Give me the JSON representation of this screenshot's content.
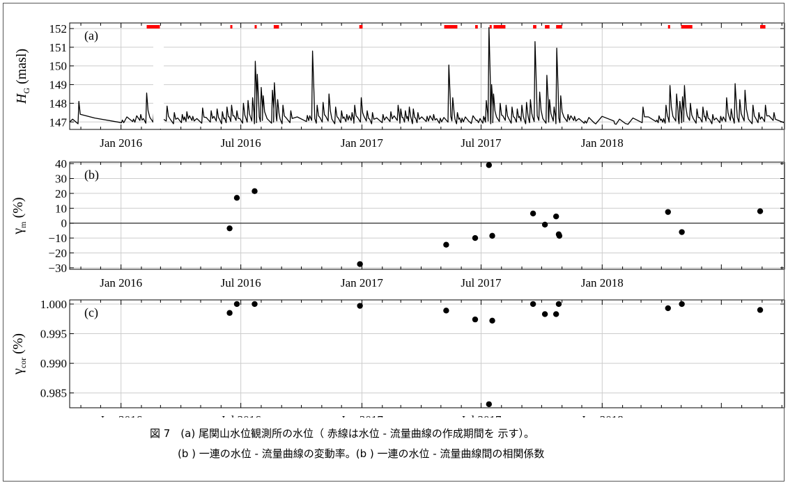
{
  "chart_data": [
    {
      "type": "line",
      "panel_label": "(a)",
      "ylabel": "H_G (masl)",
      "ylabel_main": "H",
      "ylabel_sub": "G",
      "ylabel_unit": "(masl)",
      "x_range": [
        "2015-10-15",
        "2018-10-05"
      ],
      "ylim": [
        146.6,
        152.3
      ],
      "yticks": [
        147,
        148,
        149,
        150,
        151,
        152
      ],
      "xtick_labels": [
        "Jan 2016",
        "Jul 2016",
        "Jan 2017",
        "Jul 2017",
        "Jan 2018"
      ],
      "xtick_dates": [
        "2016-01-01",
        "2016-07-01",
        "2017-01-01",
        "2017-07-01",
        "2018-01-01"
      ],
      "grid": true,
      "baseline": 146.85,
      "peaks": [
        [
          "2015-10-29",
          148.1
        ],
        [
          "2016-01-03",
          147.1
        ],
        [
          "2016-01-20",
          147.15
        ],
        [
          "2016-01-31",
          147.4
        ],
        [
          "2016-02-09",
          148.55
        ],
        [
          "2016-02-20",
          147.6
        ],
        [
          "2016-03-11",
          147.85
        ],
        [
          "2016-03-22",
          147.5
        ],
        [
          "2016-04-03",
          147.4
        ],
        [
          "2016-04-10",
          147.55
        ],
        [
          "2016-04-19",
          147.3
        ],
        [
          "2016-05-04",
          147.75
        ],
        [
          "2016-05-17",
          147.6
        ],
        [
          "2016-05-26",
          147.7
        ],
        [
          "2016-06-03",
          147.55
        ],
        [
          "2016-06-10",
          147.8
        ],
        [
          "2016-06-17",
          147.9
        ],
        [
          "2016-06-25",
          147.6
        ],
        [
          "2016-07-05",
          148.0
        ],
        [
          "2016-07-12",
          148.15
        ],
        [
          "2016-07-19",
          148.3
        ],
        [
          "2016-07-23",
          150.25
        ],
        [
          "2016-07-26",
          149.55
        ],
        [
          "2016-08-01",
          148.85
        ],
        [
          "2016-08-04",
          148.4
        ],
        [
          "2016-08-18",
          148.7
        ],
        [
          "2016-08-21",
          149.1
        ],
        [
          "2016-08-26",
          148.2
        ],
        [
          "2016-09-03",
          147.9
        ],
        [
          "2016-09-15",
          147.6
        ],
        [
          "2016-10-10",
          147.35
        ],
        [
          "2016-10-18",
          150.8
        ],
        [
          "2016-10-25",
          147.9
        ],
        [
          "2016-11-03",
          148.05
        ],
        [
          "2016-11-12",
          148.5
        ],
        [
          "2016-11-22",
          147.8
        ],
        [
          "2016-12-01",
          147.6
        ],
        [
          "2016-12-09",
          147.4
        ],
        [
          "2016-12-17",
          147.5
        ],
        [
          "2016-12-21",
          147.9
        ],
        [
          "2016-12-31",
          148.3
        ],
        [
          "2017-01-09",
          147.6
        ],
        [
          "2017-01-17",
          147.5
        ],
        [
          "2017-02-02",
          147.4
        ],
        [
          "2017-02-14",
          147.55
        ],
        [
          "2017-02-25",
          147.9
        ],
        [
          "2017-03-01",
          147.7
        ],
        [
          "2017-03-08",
          147.6
        ],
        [
          "2017-03-14",
          147.8
        ],
        [
          "2017-03-20",
          147.7
        ],
        [
          "2017-03-27",
          147.5
        ],
        [
          "2017-04-10",
          147.3
        ],
        [
          "2017-04-20",
          147.4
        ],
        [
          "2017-04-30",
          147.2
        ],
        [
          "2017-05-13",
          150.05
        ],
        [
          "2017-05-19",
          148.3
        ],
        [
          "2017-05-26",
          147.5
        ],
        [
          "2017-06-02",
          147.2
        ],
        [
          "2017-06-14",
          147.0
        ],
        [
          "2017-06-25",
          147.1
        ],
        [
          "2017-07-05",
          147.3
        ],
        [
          "2017-07-09",
          148.15
        ],
        [
          "2017-07-13",
          152.05
        ],
        [
          "2017-07-17",
          149.0
        ],
        [
          "2017-07-20",
          148.5
        ],
        [
          "2017-07-30",
          148.0
        ],
        [
          "2017-08-08",
          147.9
        ],
        [
          "2017-08-17",
          147.8
        ],
        [
          "2017-08-25",
          147.7
        ],
        [
          "2017-09-01",
          147.9
        ],
        [
          "2017-09-08",
          148.05
        ],
        [
          "2017-09-14",
          148.2
        ],
        [
          "2017-09-21",
          151.3
        ],
        [
          "2017-09-28",
          148.6
        ],
        [
          "2017-10-09",
          149.5
        ],
        [
          "2017-10-13",
          148.2
        ],
        [
          "2017-10-20",
          147.8
        ],
        [
          "2017-10-24",
          150.95
        ],
        [
          "2017-10-30",
          148.4
        ],
        [
          "2017-11-10",
          147.4
        ],
        [
          "2017-11-20",
          147.3
        ],
        [
          "2017-12-06",
          147.05
        ],
        [
          "2017-12-20",
          146.95
        ],
        [
          "2018-01-20",
          146.9
        ],
        [
          "2018-02-07",
          146.9
        ],
        [
          "2018-03-04",
          147.8
        ],
        [
          "2018-03-25",
          147.1
        ],
        [
          "2018-04-01",
          147.15
        ],
        [
          "2018-04-08",
          147.9
        ],
        [
          "2018-04-14",
          148.95
        ],
        [
          "2018-04-24",
          148.5
        ],
        [
          "2018-04-29",
          148.1
        ],
        [
          "2018-05-03",
          148.35
        ],
        [
          "2018-05-06",
          148.95
        ],
        [
          "2018-05-15",
          148.0
        ],
        [
          "2018-05-25",
          147.7
        ],
        [
          "2018-06-03",
          147.8
        ],
        [
          "2018-06-09",
          147.6
        ],
        [
          "2018-06-18",
          147.4
        ],
        [
          "2018-06-30",
          147.3
        ],
        [
          "2018-07-09",
          148.3
        ],
        [
          "2018-07-16",
          147.7
        ],
        [
          "2018-07-22",
          149.05
        ],
        [
          "2018-07-29",
          148.2
        ],
        [
          "2018-08-06",
          148.7
        ],
        [
          "2018-08-18",
          147.9
        ],
        [
          "2018-08-27",
          147.5
        ],
        [
          "2018-09-06",
          147.9
        ],
        [
          "2018-09-19",
          147.5
        ]
      ],
      "gaps": [
        [
          "2016-02-19",
          "2016-03-06"
        ]
      ],
      "red_markers": [
        [
          "2016-02-09",
          "2016-02-29"
        ],
        [
          "2016-06-15",
          "2016-06-18"
        ],
        [
          "2016-07-22",
          "2016-07-25"
        ],
        [
          "2016-08-20",
          "2016-08-28"
        ],
        [
          "2016-12-28",
          "2017-01-02"
        ],
        [
          "2017-05-06",
          "2017-05-26"
        ],
        [
          "2017-06-22",
          "2017-06-26"
        ],
        [
          "2017-07-14",
          "2017-07-17"
        ],
        [
          "2017-07-20",
          "2017-08-07"
        ],
        [
          "2017-09-18",
          "2017-09-23"
        ],
        [
          "2017-10-06",
          "2017-10-13"
        ],
        [
          "2017-10-23",
          "2017-11-01"
        ],
        [
          "2018-04-11",
          "2018-04-14"
        ],
        [
          "2018-05-01",
          "2018-05-18"
        ],
        [
          "2018-08-29",
          "2018-09-06"
        ]
      ]
    },
    {
      "type": "scatter",
      "panel_label": "(b)",
      "ylabel": "γm (%)",
      "ylabel_main": "γ",
      "ylabel_sub": "m",
      "ylabel_unit": "(%)",
      "x_range": [
        "2015-10-15",
        "2018-10-05"
      ],
      "ylim": [
        -31,
        41
      ],
      "yticks": [
        -30,
        -20,
        -10,
        0,
        10,
        20,
        30,
        40
      ],
      "ytick_labels": [
        "−30",
        "−20",
        "−10",
        "0",
        "10",
        "20",
        "30",
        "40"
      ],
      "xtick_labels": [
        "Jan 2016",
        "Jul 2016",
        "Jan 2017",
        "Jul 2017",
        "Jan 2018"
      ],
      "xtick_dates": [
        "2016-01-01",
        "2016-07-01",
        "2017-01-01",
        "2017-07-01",
        "2018-01-01"
      ],
      "grid": true,
      "zero_line": true,
      "points": [
        [
          "2016-06-14",
          -3.5
        ],
        [
          "2016-06-25",
          17
        ],
        [
          "2016-07-22",
          21.5
        ],
        [
          "2016-12-29",
          -27.5
        ],
        [
          "2017-05-09",
          -14.5
        ],
        [
          "2017-06-22",
          -10
        ],
        [
          "2017-07-13",
          39
        ],
        [
          "2017-07-18",
          -8.5
        ],
        [
          "2017-09-18",
          6.5
        ],
        [
          "2017-10-06",
          -1
        ],
        [
          "2017-10-23",
          4.5
        ],
        [
          "2017-10-27",
          -7.5
        ],
        [
          "2017-10-28",
          -8.5
        ],
        [
          "2018-04-11",
          7.5
        ],
        [
          "2018-05-02",
          -6
        ],
        [
          "2018-08-29",
          8
        ]
      ]
    },
    {
      "type": "scatter",
      "panel_label": "(c)",
      "ylabel": "γcor (%)",
      "ylabel_main": "γ",
      "ylabel_sub": "cor",
      "ylabel_unit": "(%)",
      "x_range": [
        "2015-10-15",
        "2018-10-05"
      ],
      "ylim": [
        0.9825,
        1.0007
      ],
      "yticks": [
        0.985,
        0.99,
        0.995,
        1.0
      ],
      "ytick_labels": [
        "0.985",
        "0.990",
        "0.995",
        "1.000"
      ],
      "xtick_labels": [
        "Jan 2016",
        "Jul 2016",
        "Jan 2017",
        "Jul 2017",
        "Jan 2018"
      ],
      "xtick_dates": [
        "2016-01-01",
        "2016-07-01",
        "2017-01-01",
        "2017-07-01",
        "2018-01-01"
      ],
      "grid": true,
      "points": [
        [
          "2016-06-14",
          0.9985
        ],
        [
          "2016-06-25",
          1.0
        ],
        [
          "2016-07-22",
          1.0
        ],
        [
          "2016-12-29",
          0.9997
        ],
        [
          "2017-05-09",
          0.9989
        ],
        [
          "2017-06-22",
          0.9974
        ],
        [
          "2017-07-13",
          0.9831
        ],
        [
          "2017-07-18",
          0.9972
        ],
        [
          "2017-09-18",
          1.0
        ],
        [
          "2017-10-06",
          0.9983
        ],
        [
          "2017-10-23",
          0.9983
        ],
        [
          "2017-10-27",
          1.0
        ],
        [
          "2018-04-11",
          0.9993
        ],
        [
          "2018-05-02",
          1.0
        ],
        [
          "2018-08-29",
          0.999
        ]
      ]
    }
  ],
  "caption": {
    "line1": "図 7　(a) 尾関山水位観測所の水位（ 赤線は水位 - 流量曲線の作成期間を 示す）。",
    "line2": "(b ) 一連の水位 - 流量曲線の変動率。(b ) 一連の水位 - 流量曲線間の相関係数"
  },
  "colors": {
    "series": "#000000",
    "markers": "#ff0000",
    "grid": "#cccccc",
    "axis": "#000000"
  }
}
